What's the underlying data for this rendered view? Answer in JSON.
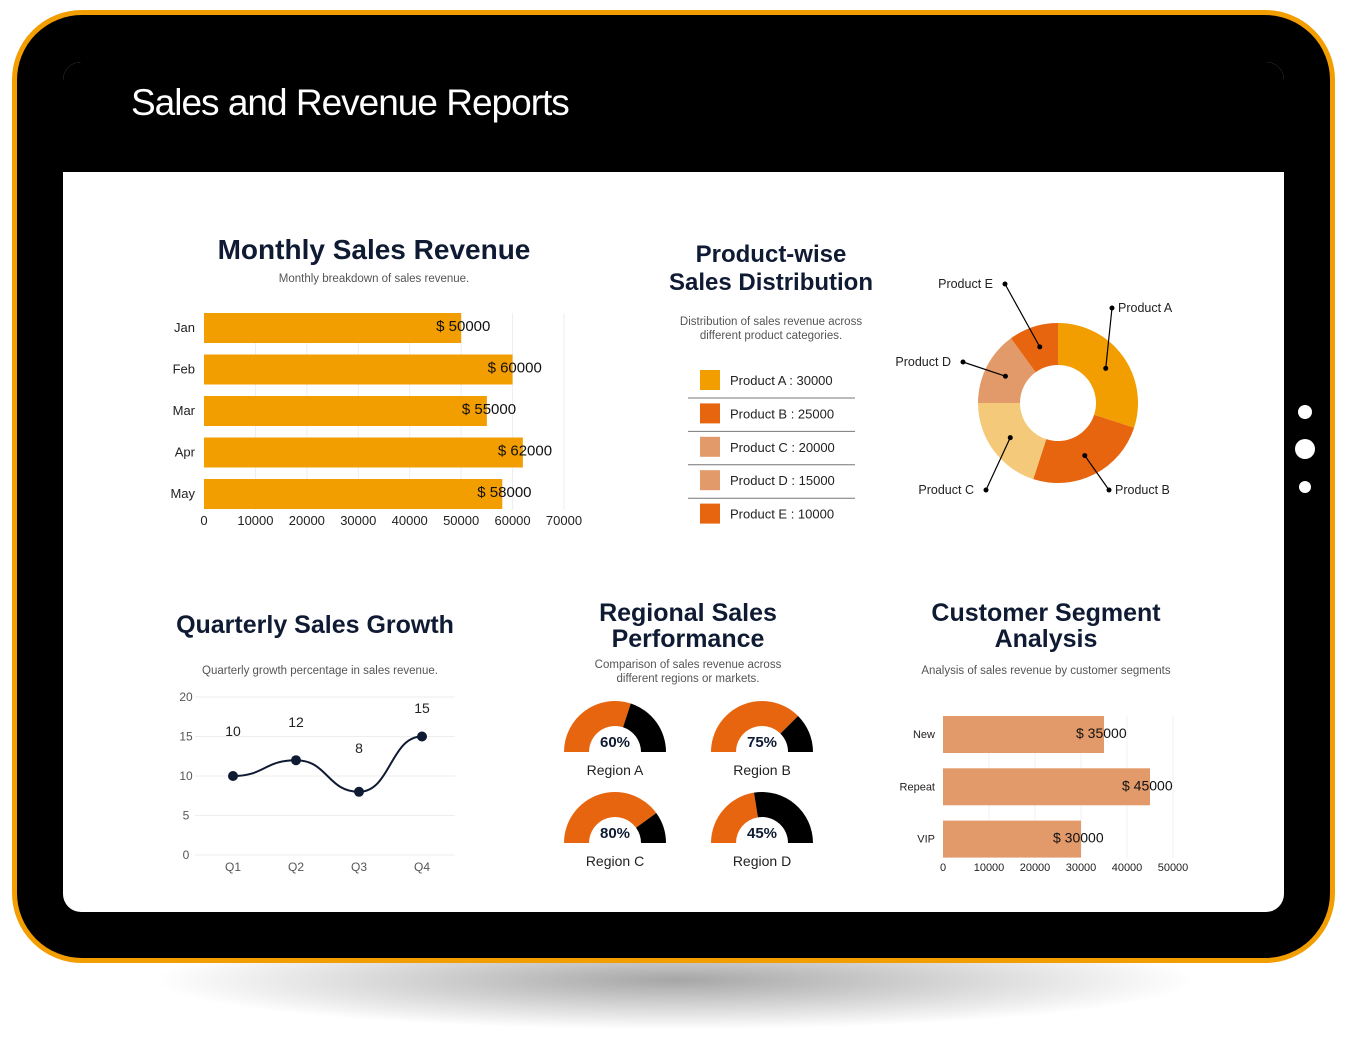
{
  "header": {
    "title": "Sales and Revenue Reports"
  },
  "colors": {
    "frame": "#f29d00",
    "orange": "#f29d00",
    "dark_orange": "#e8650f",
    "peach": "#e39a6a",
    "light": "#f5c97a",
    "navy": "#0f1a33"
  },
  "chart_data": [
    {
      "id": "monthly",
      "type": "bar",
      "orientation": "horizontal",
      "title": "Monthly Sales Revenue",
      "subtitle": "Monthly breakdown of sales revenue.",
      "categories": [
        "Jan",
        "Feb",
        "Mar",
        "Apr",
        "May"
      ],
      "values": [
        50000,
        60000,
        55000,
        62000,
        58000
      ],
      "labels": [
        "$ 50000",
        "$ 60000",
        "$ 55000",
        "$ 62000",
        "$ 58000"
      ],
      "xticks": [
        "0",
        "10000",
        "20000",
        "30000",
        "40000",
        "50000",
        "60000",
        "70000"
      ],
      "xlim": [
        0,
        70000
      ]
    },
    {
      "id": "product",
      "type": "pie",
      "title_lines": [
        "Product-wise",
        "Sales Distribution"
      ],
      "subtitle_lines": [
        "Distribution of sales revenue across",
        "different product categories."
      ],
      "categories": [
        "Product A",
        "Product B",
        "Product C",
        "Product D",
        "Product E"
      ],
      "values": [
        30000,
        25000,
        20000,
        15000,
        10000
      ],
      "legend": [
        "Product A : 30000",
        "Product B : 25000",
        "Product C : 20000",
        "Product D : 15000",
        "Product E : 10000"
      ]
    },
    {
      "id": "quarterly",
      "type": "line",
      "title": "Quarterly Sales Growth",
      "subtitle": "Quarterly growth percentage in sales revenue.",
      "categories": [
        "Q1",
        "Q2",
        "Q3",
        "Q4"
      ],
      "values": [
        10,
        12,
        8,
        15
      ],
      "labels": [
        "10",
        "12",
        "8",
        "15"
      ],
      "yticks": [
        "0",
        "5",
        "10",
        "15",
        "20"
      ],
      "ylim": [
        0,
        20
      ]
    },
    {
      "id": "regional",
      "type": "gauge",
      "title_lines": [
        "Regional Sales",
        "Performance"
      ],
      "subtitle_lines": [
        "Comparison of sales revenue across",
        "different regions or markets."
      ],
      "categories": [
        "Region A",
        "Region B",
        "Region C",
        "Region D"
      ],
      "values": [
        60,
        75,
        80,
        45
      ],
      "labels": [
        "60%",
        "75%",
        "80%",
        "45%"
      ]
    },
    {
      "id": "segment",
      "type": "bar",
      "orientation": "horizontal",
      "title_lines": [
        "Customer Segment",
        "Analysis"
      ],
      "subtitle": "Analysis of sales revenue by customer segments",
      "categories": [
        "New",
        "Repeat",
        "VIP"
      ],
      "values": [
        35000,
        45000,
        30000
      ],
      "labels": [
        "$ 35000",
        "$ 45000",
        "$ 30000"
      ],
      "xticks": [
        "0",
        "10000",
        "20000",
        "30000",
        "40000",
        "50000"
      ],
      "xlim": [
        0,
        50000
      ]
    }
  ]
}
